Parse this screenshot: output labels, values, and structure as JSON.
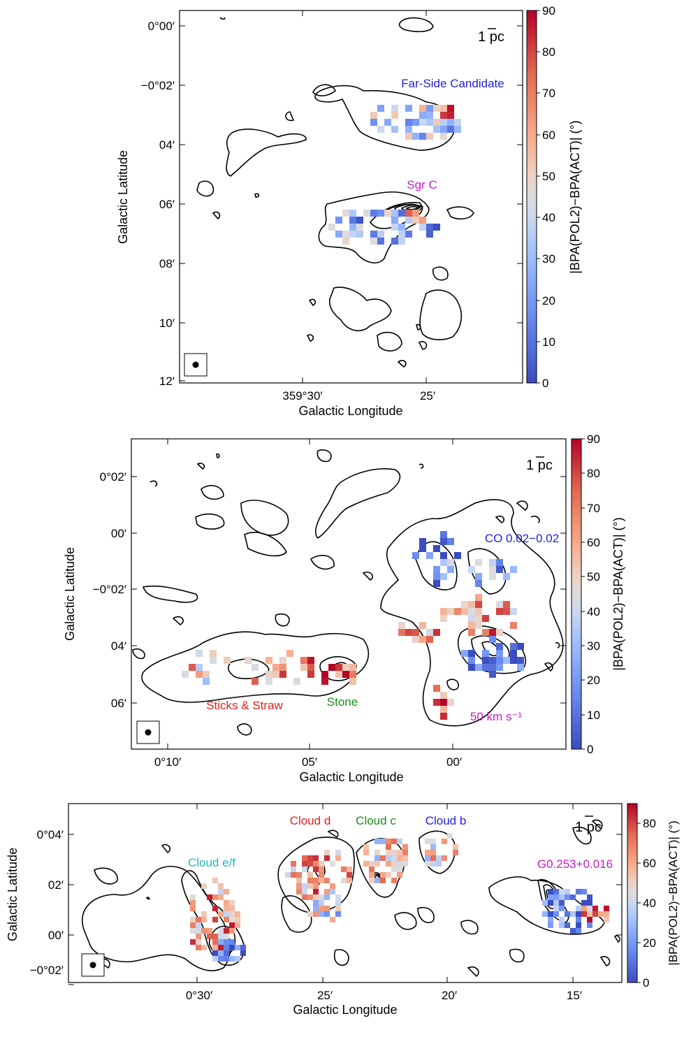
{
  "chart_data": [
    {
      "type": "heatmap",
      "panel": "top",
      "xlabel": "Galactic Longitude",
      "ylabel": "Galactic Latitude",
      "xticks": [
        "359°30′",
        "25′"
      ],
      "yticks": [
        "0°00′",
        "−0°02′",
        "04′",
        "06′",
        "08′",
        "10′",
        "12′"
      ],
      "colorbar": {
        "label": "|BPA(POL2)−BPA(ACT)| (°)",
        "ticks": [
          "0",
          "10",
          "20",
          "30",
          "40",
          "50",
          "60",
          "70",
          "80",
          "90"
        ],
        "range": [
          0,
          90
        ],
        "colormap": "coolwarm"
      },
      "scalebar": "1 pc",
      "annotations": [
        {
          "text": "Far-Side Candidate",
          "color": "#1f1fd8"
        },
        {
          "text": "Sgr C",
          "color": "#c21ec2"
        }
      ]
    },
    {
      "type": "heatmap",
      "panel": "middle",
      "xlabel": "Galactic Longitude",
      "ylabel": "Galactic Latitude",
      "xticks": [
        "0°10′",
        "05′",
        "00′"
      ],
      "yticks": [
        "0°02′",
        "00′",
        "−0°02′",
        "04′",
        "06′"
      ],
      "colorbar": {
        "label": "|BPA(POL2)−BPA(ACT)| (°)",
        "ticks": [
          "0",
          "10",
          "20",
          "30",
          "40",
          "50",
          "60",
          "70",
          "80",
          "90"
        ],
        "range": [
          0,
          90
        ],
        "colormap": "coolwarm"
      },
      "scalebar": "1 pc",
      "annotations": [
        {
          "text": "CO 0.02−0.02",
          "color": "#1f1fd8"
        },
        {
          "text": "Sticks & Straw",
          "color": "#e02020"
        },
        {
          "text": "Stone",
          "color": "#1a8c1a"
        },
        {
          "text": "50 km s⁻¹",
          "color": "#c21ec2"
        }
      ]
    },
    {
      "type": "heatmap",
      "panel": "bottom",
      "xlabel": "Galactic Longitude",
      "ylabel": "Galactic Latitude",
      "xticks": [
        "0°30′",
        "25′",
        "20′",
        "15′"
      ],
      "yticks": [
        "0°04′",
        "02′",
        "00′",
        "−0°02′"
      ],
      "colorbar": {
        "label": "|BPA(POL2)−BPA(ACT)| (°)",
        "ticks": [
          "0",
          "20",
          "40",
          "60",
          "80"
        ],
        "range": [
          0,
          90
        ],
        "colormap": "coolwarm"
      },
      "scalebar": "1 pc",
      "annotations": [
        {
          "text": "Cloud d",
          "color": "#e02020"
        },
        {
          "text": "Cloud c",
          "color": "#1a8c1a"
        },
        {
          "text": "Cloud b",
          "color": "#1f1fd8"
        },
        {
          "text": "Cloud e/f",
          "color": "#1fb8b8"
        },
        {
          "text": "G0.253+0.016",
          "color": "#c21ec2"
        }
      ]
    }
  ]
}
